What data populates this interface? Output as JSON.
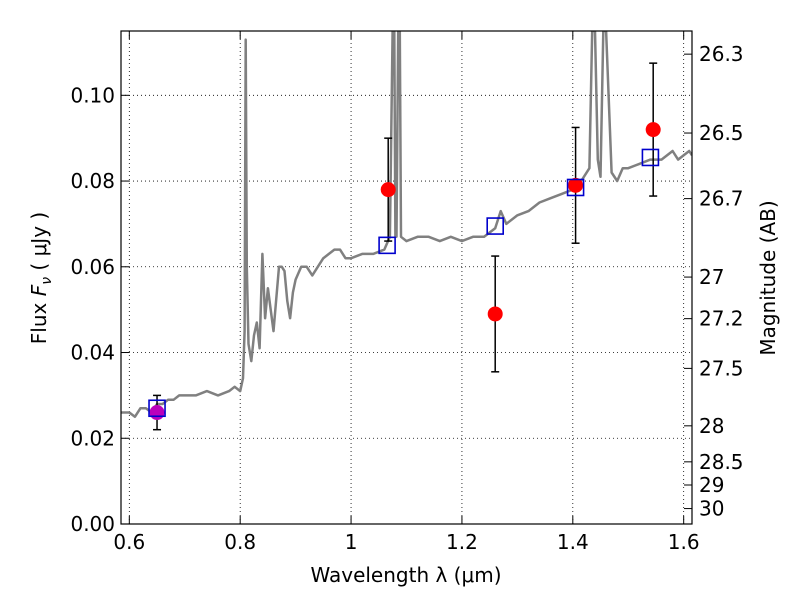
{
  "chart_data": {
    "type": "scatter",
    "xlabel": "Wavelength  λ (μm)",
    "ylabel": "Flux  F_ν ( μJy )",
    "ylabel_parts": {
      "prefix": "Flux  ",
      "symbol": "F",
      "subscript": "ν",
      "suffix": "  ( μJy )"
    },
    "y2label": "Magnitude (AB)",
    "xlim": [
      0.585,
      1.615
    ],
    "ylim": [
      0.0,
      0.115
    ],
    "x_ticks": [
      0.6,
      0.8,
      1.0,
      1.2,
      1.4,
      1.6
    ],
    "x_tick_labels": [
      "0.6",
      "0.8",
      "1",
      "1.2",
      "1.4",
      "1.6"
    ],
    "y_ticks": [
      0.0,
      0.02,
      0.04,
      0.06,
      0.08,
      0.1
    ],
    "y_tick_labels": [
      "0.00",
      "0.02",
      "0.04",
      "0.06",
      "0.08",
      "0.10"
    ],
    "y2_ticks": [
      {
        "label": "26.3",
        "flux": 0.1096
      },
      {
        "label": "26.5",
        "flux": 0.0912
      },
      {
        "label": "26.7",
        "flux": 0.0759
      },
      {
        "label": "27",
        "flux": 0.0576
      },
      {
        "label": "27.2",
        "flux": 0.0479
      },
      {
        "label": "27.5",
        "flux": 0.0363
      },
      {
        "label": "28",
        "flux": 0.0229
      },
      {
        "label": "28.5",
        "flux": 0.0145
      },
      {
        "label": "29",
        "flux": 0.0091
      },
      {
        "label": "30",
        "flux": 0.0036
      }
    ],
    "grid": true,
    "colors": {
      "spectrum": "#808080",
      "observed": "#ff0000",
      "model_box": "#0000cc",
      "purple_point": "#bb00bb",
      "error_bar": "#000000"
    },
    "spectrum": {
      "x": [
        0.585,
        0.6,
        0.61,
        0.62,
        0.63,
        0.64,
        0.65,
        0.66,
        0.67,
        0.68,
        0.69,
        0.7,
        0.72,
        0.74,
        0.76,
        0.78,
        0.79,
        0.8,
        0.805,
        0.808,
        0.81,
        0.812,
        0.815,
        0.82,
        0.825,
        0.83,
        0.835,
        0.84,
        0.845,
        0.85,
        0.855,
        0.86,
        0.87,
        0.875,
        0.88,
        0.885,
        0.89,
        0.895,
        0.9,
        0.91,
        0.92,
        0.93,
        0.94,
        0.95,
        0.96,
        0.97,
        0.98,
        0.99,
        1.0,
        1.02,
        1.04,
        1.06,
        1.07,
        1.075,
        1.078,
        1.08,
        1.082,
        1.085,
        1.088,
        1.09,
        1.1,
        1.12,
        1.14,
        1.16,
        1.18,
        1.2,
        1.22,
        1.24,
        1.26,
        1.27,
        1.28,
        1.3,
        1.32,
        1.34,
        1.36,
        1.38,
        1.4,
        1.41,
        1.42,
        1.43,
        1.435,
        1.44,
        1.445,
        1.45,
        1.455,
        1.46,
        1.47,
        1.48,
        1.49,
        1.5,
        1.52,
        1.54,
        1.56,
        1.58,
        1.59,
        1.6,
        1.61,
        1.615
      ],
      "y": [
        0.026,
        0.026,
        0.025,
        0.027,
        0.027,
        0.026,
        0.028,
        0.028,
        0.029,
        0.029,
        0.03,
        0.03,
        0.03,
        0.031,
        0.03,
        0.031,
        0.032,
        0.031,
        0.034,
        0.045,
        0.113,
        0.06,
        0.042,
        0.038,
        0.044,
        0.047,
        0.041,
        0.063,
        0.048,
        0.055,
        0.05,
        0.045,
        0.06,
        0.06,
        0.059,
        0.052,
        0.048,
        0.054,
        0.057,
        0.06,
        0.06,
        0.058,
        0.06,
        0.062,
        0.063,
        0.064,
        0.064,
        0.062,
        0.062,
        0.063,
        0.063,
        0.064,
        0.067,
        0.115,
        0.115,
        0.067,
        0.067,
        0.115,
        0.115,
        0.067,
        0.066,
        0.067,
        0.067,
        0.066,
        0.067,
        0.066,
        0.067,
        0.067,
        0.069,
        0.073,
        0.07,
        0.072,
        0.073,
        0.075,
        0.076,
        0.077,
        0.078,
        0.079,
        0.081,
        0.083,
        0.115,
        0.115,
        0.085,
        0.081,
        0.115,
        0.115,
        0.082,
        0.08,
        0.083,
        0.083,
        0.084,
        0.085,
        0.085,
        0.087,
        0.085,
        0.086,
        0.087,
        0.086
      ]
    },
    "observed": [
      {
        "x": 0.65,
        "y": 0.026,
        "err": 0.004
      },
      {
        "x": 1.067,
        "y": 0.078,
        "err": 0.012
      },
      {
        "x": 1.26,
        "y": 0.049,
        "err": 0.0135
      },
      {
        "x": 1.405,
        "y": 0.079,
        "err": 0.0135
      },
      {
        "x": 1.545,
        "y": 0.092,
        "err": 0.0155
      }
    ],
    "model_points": [
      {
        "x": 0.65,
        "y": 0.027
      },
      {
        "x": 1.065,
        "y": 0.065
      },
      {
        "x": 1.26,
        "y": 0.0695
      },
      {
        "x": 1.405,
        "y": 0.0785
      },
      {
        "x": 1.54,
        "y": 0.0855
      }
    ]
  }
}
